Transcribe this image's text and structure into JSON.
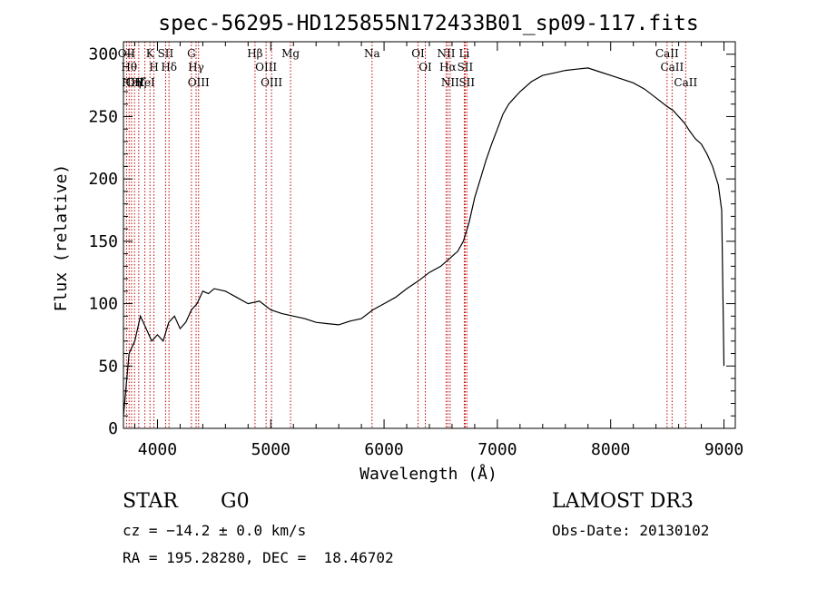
{
  "chart_data": {
    "type": "line",
    "title": "spec-56295-HD125855N172433B01_sp09-117.fits",
    "xlabel": "Wavelength (Å)",
    "ylabel": "Flux (relative)",
    "xlim": [
      3700,
      9100
    ],
    "ylim": [
      0,
      310
    ],
    "xticks": [
      4000,
      5000,
      6000,
      7000,
      8000,
      9000
    ],
    "yticks": [
      0,
      50,
      100,
      150,
      200,
      250,
      300
    ],
    "grid": false,
    "series": [
      {
        "x": [
          3700,
          3750,
          3800,
          3850,
          3900,
          3950,
          4000,
          4050,
          4100,
          4150,
          4200,
          4250,
          4300,
          4350,
          4400,
          4450,
          4500,
          4600,
          4700,
          4800,
          4900,
          5000,
          5100,
          5200,
          5300,
          5400,
          5500,
          5600,
          5700,
          5800,
          5900,
          6000,
          6100,
          6200,
          6300,
          6400,
          6500,
          6600,
          6650,
          6700,
          6750,
          6800,
          6850,
          6900,
          6950,
          7000,
          7050,
          7100,
          7150,
          7200,
          7300,
          7400,
          7500,
          7600,
          7700,
          7800,
          7900,
          8000,
          8100,
          8200,
          8300,
          8400,
          8500,
          8550,
          8600,
          8650,
          8700,
          8750,
          8800,
          8850,
          8900,
          8950,
          8980,
          9000
        ],
        "y": [
          10,
          60,
          70,
          90,
          80,
          70,
          75,
          70,
          85,
          90,
          80,
          85,
          95,
          100,
          110,
          108,
          112,
          110,
          105,
          100,
          102,
          95,
          92,
          90,
          88,
          85,
          84,
          83,
          86,
          88,
          95,
          100,
          105,
          112,
          118,
          125,
          130,
          138,
          142,
          150,
          165,
          185,
          200,
          215,
          228,
          240,
          252,
          260,
          265,
          270,
          278,
          283,
          285,
          287,
          288,
          289,
          286,
          283,
          280,
          277,
          272,
          265,
          258,
          255,
          250,
          245,
          238,
          232,
          228,
          220,
          210,
          195,
          175,
          50
        ]
      }
    ],
    "line_markers": [
      {
        "wl": 3727,
        "label": "OII"
      },
      {
        "wl": 3750,
        "label": "Hθ"
      },
      {
        "wl": 3771,
        "label": "H η"
      },
      {
        "wl": 3798,
        "label": "OII"
      },
      {
        "wl": 3835,
        "label": "Hζ"
      },
      {
        "wl": 3889,
        "label": "HeI"
      },
      {
        "wl": 3934,
        "label": "K"
      },
      {
        "wl": 3969,
        "label": "H"
      },
      {
        "wl": 4072,
        "label": "SII"
      },
      {
        "wl": 4102,
        "label": "Hδ"
      },
      {
        "wl": 4300,
        "label": "G"
      },
      {
        "wl": 4341,
        "label": "Hγ"
      },
      {
        "wl": 4363,
        "label": "OIII"
      },
      {
        "wl": 4861,
        "label": "Hβ"
      },
      {
        "wl": 4959,
        "label": "OIII"
      },
      {
        "wl": 5007,
        "label": "OIII"
      },
      {
        "wl": 5175,
        "label": "Mg"
      },
      {
        "wl": 5894,
        "label": "Na"
      },
      {
        "wl": 6300,
        "label": "OI"
      },
      {
        "wl": 6364,
        "label": "OI"
      },
      {
        "wl": 6548,
        "label": "NII"
      },
      {
        "wl": 6563,
        "label": "Hα"
      },
      {
        "wl": 6583,
        "label": "NII"
      },
      {
        "wl": 6708,
        "label": "Li"
      },
      {
        "wl": 6716,
        "label": "SII"
      },
      {
        "wl": 6731,
        "label": "SII"
      },
      {
        "wl": 8498,
        "label": "CaII"
      },
      {
        "wl": 8542,
        "label": "CaII"
      },
      {
        "wl": 8662,
        "label": "CaII"
      }
    ]
  },
  "info": {
    "object_class": "STAR",
    "subclass": "G0",
    "survey": "LAMOST DR3",
    "cz": "cz = −14.2 ± 0.0 km/s",
    "obs_date": "Obs-Date: 20130102",
    "coords": "RA = 195.28280, DEC =  18.46702"
  },
  "colors": {
    "spectrum": "#000000",
    "marker": "#c00000",
    "axes": "#000000"
  }
}
